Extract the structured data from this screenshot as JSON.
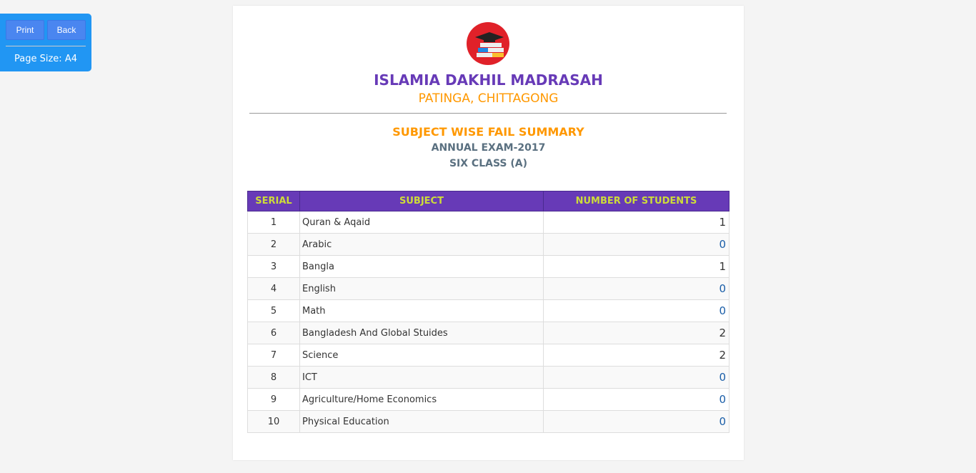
{
  "toolbar": {
    "print": "Print",
    "back": "Back",
    "page_size": "Page Size: A4"
  },
  "header": {
    "school": "ISLAMIA DAKHIL MADRASAH",
    "location": "PATINGA, CHITTAGONG",
    "report": "SUBJECT WISE FAIL SUMMARY",
    "exam": "ANNUAL EXAM-2017",
    "class": "SIX CLASS (A)"
  },
  "table": {
    "headers": [
      "SERIAL",
      "SUBJECT",
      "NUMBER OF STUDENTS"
    ],
    "rows": [
      [
        "1",
        "Quran & Aqaid",
        "1"
      ],
      [
        "2",
        "Arabic",
        "0"
      ],
      [
        "3",
        "Bangla",
        "1"
      ],
      [
        "4",
        "English",
        "0"
      ],
      [
        "5",
        "Math",
        "0"
      ],
      [
        "6",
        "Bangladesh And Global Stuides",
        "2"
      ],
      [
        "7",
        "Science",
        "2"
      ],
      [
        "8",
        "ICT",
        "0"
      ],
      [
        "9",
        "Agriculture/Home Economics",
        "0"
      ],
      [
        "10",
        "Physical Education",
        "0"
      ]
    ]
  },
  "colors": {
    "title": "#673ab7",
    "accent": "#ff9800",
    "header_bg": "#673ab7",
    "header_text": "#cddc39",
    "toolbar": "#2196f3"
  }
}
